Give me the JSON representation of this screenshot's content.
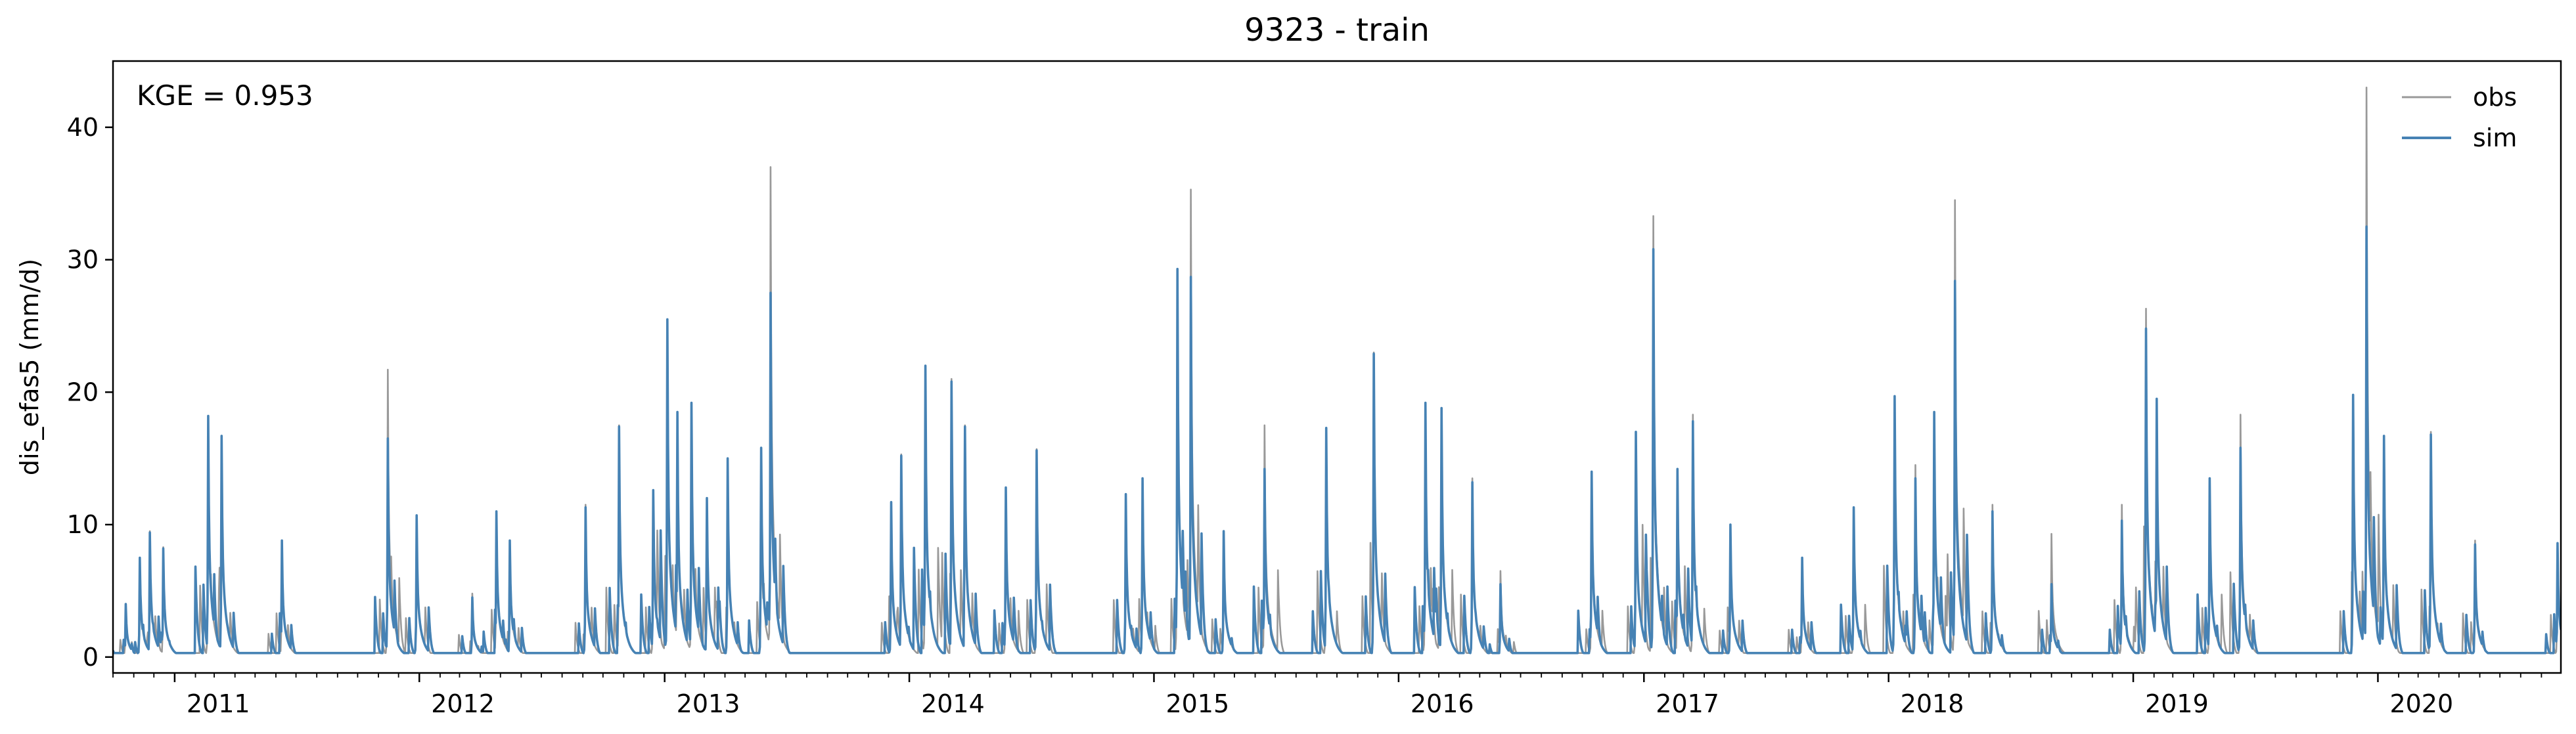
{
  "chart_data": {
    "type": "line",
    "title": "9323 - train",
    "ylabel": "dis_efas5 (mm/d)",
    "xlabel": "",
    "annotation": "KGE = 0.953",
    "legend_position": "top-right",
    "grid": false,
    "x_range": [
      "2010-10-01",
      "2020-09-30"
    ],
    "ylim": [
      -1.2,
      45
    ],
    "yticks": [
      0,
      10,
      20,
      30,
      40
    ],
    "ytick_labels": [
      "0",
      "10",
      "20",
      "30",
      "40"
    ],
    "xticks": [
      "2011-01-01",
      "2012-01-01",
      "2013-01-01",
      "2014-01-01",
      "2015-01-01",
      "2016-01-01",
      "2017-01-01",
      "2018-01-01",
      "2019-01-01",
      "2020-01-01"
    ],
    "xtick_labels": [
      "2011",
      "2012",
      "2013",
      "2014",
      "2015",
      "2016",
      "2017",
      "2018",
      "2019",
      "2020"
    ],
    "baseflow": 0.3,
    "series": [
      {
        "name": "obs",
        "color": "#999999",
        "peaks": [
          {
            "x": "2010-10-20",
            "y": 4.0
          },
          {
            "x": "2010-11-10",
            "y": 7.5
          },
          {
            "x": "2010-11-25",
            "y": 9.5
          },
          {
            "x": "2010-12-15",
            "y": 8.3
          },
          {
            "x": "2011-02-20",
            "y": 18.0
          },
          {
            "x": "2011-03-12",
            "y": 16.7
          },
          {
            "x": "2011-06-10",
            "y": 8.8
          },
          {
            "x": "2011-11-15",
            "y": 21.7
          },
          {
            "x": "2011-12-28",
            "y": 10.7
          },
          {
            "x": "2012-03-20",
            "y": 4.8
          },
          {
            "x": "2012-04-25",
            "y": 11.0
          },
          {
            "x": "2012-05-15",
            "y": 8.8
          },
          {
            "x": "2012-09-05",
            "y": 11.5
          },
          {
            "x": "2012-10-25",
            "y": 17.5
          },
          {
            "x": "2012-12-15",
            "y": 12.5
          },
          {
            "x": "2013-01-05",
            "y": 25.5
          },
          {
            "x": "2013-01-20",
            "y": 18.5
          },
          {
            "x": "2013-02-10",
            "y": 19.0
          },
          {
            "x": "2013-03-05",
            "y": 12.0
          },
          {
            "x": "2013-04-05",
            "y": 15.0
          },
          {
            "x": "2013-05-25",
            "y": 12.8
          },
          {
            "x": "2013-06-08",
            "y": 37.0
          },
          {
            "x": "2013-12-05",
            "y": 11.5
          },
          {
            "x": "2013-12-20",
            "y": 15.3
          },
          {
            "x": "2014-01-25",
            "y": 22.0
          },
          {
            "x": "2014-03-05",
            "y": 21.0
          },
          {
            "x": "2014-03-25",
            "y": 17.5
          },
          {
            "x": "2014-05-25",
            "y": 12.7
          },
          {
            "x": "2014-07-10",
            "y": 15.7
          },
          {
            "x": "2014-11-20",
            "y": 12.3
          },
          {
            "x": "2014-12-15",
            "y": 13.5
          },
          {
            "x": "2015-02-05",
            "y": 29.3
          },
          {
            "x": "2015-02-25",
            "y": 35.3
          },
          {
            "x": "2015-04-15",
            "y": 9.5
          },
          {
            "x": "2015-06-15",
            "y": 17.5
          },
          {
            "x": "2015-09-15",
            "y": 17.3
          },
          {
            "x": "2015-11-25",
            "y": 23.0
          },
          {
            "x": "2016-02-10",
            "y": 19.2
          },
          {
            "x": "2016-03-05",
            "y": 18.8
          },
          {
            "x": "2016-04-20",
            "y": 13.5
          },
          {
            "x": "2016-06-01",
            "y": 6.5
          },
          {
            "x": "2016-10-15",
            "y": 14.0
          },
          {
            "x": "2016-12-20",
            "y": 17.0
          },
          {
            "x": "2017-01-15",
            "y": 33.3
          },
          {
            "x": "2017-02-20",
            "y": 14.0
          },
          {
            "x": "2017-03-15",
            "y": 18.3
          },
          {
            "x": "2017-05-10",
            "y": 10.0
          },
          {
            "x": "2017-08-25",
            "y": 7.5
          },
          {
            "x": "2017-11-10",
            "y": 11.3
          },
          {
            "x": "2018-01-10",
            "y": 19.7
          },
          {
            "x": "2018-02-10",
            "y": 14.5
          },
          {
            "x": "2018-03-10",
            "y": 18.5
          },
          {
            "x": "2018-04-10",
            "y": 34.5
          },
          {
            "x": "2018-06-05",
            "y": 11.5
          },
          {
            "x": "2018-09-01",
            "y": 9.3
          },
          {
            "x": "2018-12-15",
            "y": 11.5
          },
          {
            "x": "2019-01-20",
            "y": 26.3
          },
          {
            "x": "2019-02-05",
            "y": 19.5
          },
          {
            "x": "2019-04-25",
            "y": 13.5
          },
          {
            "x": "2019-06-10",
            "y": 18.3
          },
          {
            "x": "2019-11-25",
            "y": 19.8
          },
          {
            "x": "2019-12-15",
            "y": 43.0
          },
          {
            "x": "2020-01-10",
            "y": 16.7
          },
          {
            "x": "2020-03-20",
            "y": 17.0
          },
          {
            "x": "2020-05-25",
            "y": 8.8
          },
          {
            "x": "2020-09-25",
            "y": 8.5
          }
        ]
      },
      {
        "name": "sim",
        "color": "#4682b4",
        "peaks": [
          {
            "x": "2010-10-20",
            "y": 4.0
          },
          {
            "x": "2010-11-10",
            "y": 7.5
          },
          {
            "x": "2010-11-25",
            "y": 9.4
          },
          {
            "x": "2010-12-15",
            "y": 8.2
          },
          {
            "x": "2011-02-20",
            "y": 18.2
          },
          {
            "x": "2011-03-12",
            "y": 16.7
          },
          {
            "x": "2011-06-10",
            "y": 8.8
          },
          {
            "x": "2011-11-15",
            "y": 16.5
          },
          {
            "x": "2011-12-28",
            "y": 10.7
          },
          {
            "x": "2012-03-20",
            "y": 4.5
          },
          {
            "x": "2012-04-25",
            "y": 11.0
          },
          {
            "x": "2012-05-15",
            "y": 8.8
          },
          {
            "x": "2012-09-05",
            "y": 11.3
          },
          {
            "x": "2012-10-25",
            "y": 17.4
          },
          {
            "x": "2012-12-15",
            "y": 12.6
          },
          {
            "x": "2013-01-05",
            "y": 25.5
          },
          {
            "x": "2013-01-20",
            "y": 18.5
          },
          {
            "x": "2013-02-10",
            "y": 19.2
          },
          {
            "x": "2013-03-05",
            "y": 12.0
          },
          {
            "x": "2013-04-05",
            "y": 15.0
          },
          {
            "x": "2013-05-25",
            "y": 15.8
          },
          {
            "x": "2013-06-08",
            "y": 27.5
          },
          {
            "x": "2013-12-05",
            "y": 11.7
          },
          {
            "x": "2013-12-20",
            "y": 15.2
          },
          {
            "x": "2014-01-25",
            "y": 22.0
          },
          {
            "x": "2014-03-05",
            "y": 20.8
          },
          {
            "x": "2014-03-25",
            "y": 17.4
          },
          {
            "x": "2014-05-25",
            "y": 12.8
          },
          {
            "x": "2014-07-10",
            "y": 15.6
          },
          {
            "x": "2014-11-20",
            "y": 12.3
          },
          {
            "x": "2014-12-15",
            "y": 13.5
          },
          {
            "x": "2015-02-05",
            "y": 29.3
          },
          {
            "x": "2015-02-25",
            "y": 28.7
          },
          {
            "x": "2015-04-15",
            "y": 9.5
          },
          {
            "x": "2015-06-15",
            "y": 14.2
          },
          {
            "x": "2015-09-15",
            "y": 17.3
          },
          {
            "x": "2015-11-25",
            "y": 22.9
          },
          {
            "x": "2016-02-10",
            "y": 19.2
          },
          {
            "x": "2016-03-05",
            "y": 18.8
          },
          {
            "x": "2016-04-20",
            "y": 13.2
          },
          {
            "x": "2016-06-01",
            "y": 5.5
          },
          {
            "x": "2016-10-15",
            "y": 14.0
          },
          {
            "x": "2016-12-20",
            "y": 17.0
          },
          {
            "x": "2017-01-15",
            "y": 30.8
          },
          {
            "x": "2017-02-20",
            "y": 14.2
          },
          {
            "x": "2017-03-15",
            "y": 17.8
          },
          {
            "x": "2017-05-10",
            "y": 10.0
          },
          {
            "x": "2017-08-25",
            "y": 7.5
          },
          {
            "x": "2017-11-10",
            "y": 11.3
          },
          {
            "x": "2018-01-10",
            "y": 19.7
          },
          {
            "x": "2018-02-10",
            "y": 13.5
          },
          {
            "x": "2018-03-10",
            "y": 18.5
          },
          {
            "x": "2018-04-10",
            "y": 28.4
          },
          {
            "x": "2018-06-05",
            "y": 11.0
          },
          {
            "x": "2018-09-01",
            "y": 5.5
          },
          {
            "x": "2018-12-15",
            "y": 10.3
          },
          {
            "x": "2019-01-20",
            "y": 24.8
          },
          {
            "x": "2019-02-05",
            "y": 19.5
          },
          {
            "x": "2019-04-25",
            "y": 13.5
          },
          {
            "x": "2019-06-10",
            "y": 15.8
          },
          {
            "x": "2019-11-25",
            "y": 19.8
          },
          {
            "x": "2019-12-15",
            "y": 32.5
          },
          {
            "x": "2020-01-10",
            "y": 16.7
          },
          {
            "x": "2020-03-20",
            "y": 16.8
          },
          {
            "x": "2020-05-25",
            "y": 8.5
          },
          {
            "x": "2020-09-25",
            "y": 8.6
          }
        ]
      }
    ]
  }
}
